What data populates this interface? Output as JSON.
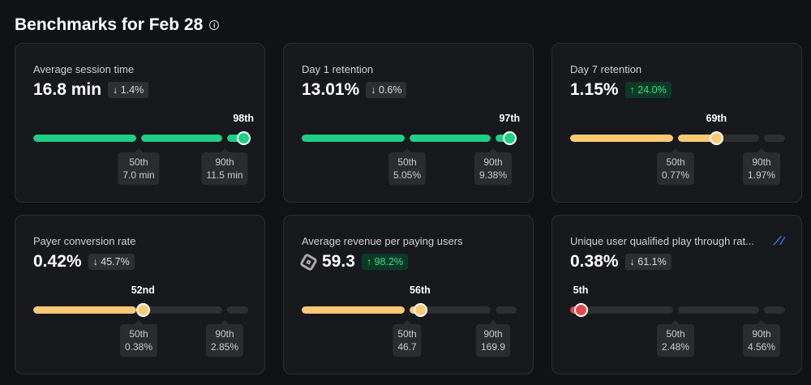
{
  "header": {
    "title": "Benchmarks for Feb 28",
    "info_icon": "info-icon"
  },
  "colors": {
    "good": "#1ecf85",
    "mid": "#fdc975",
    "bad": "#e5484d",
    "empty": "#2e2f33"
  },
  "cards": [
    {
      "title": "Average session time",
      "value": "16.8 min",
      "delta": "↓ 1.4%",
      "delta_dir": "down",
      "percentile": 98,
      "percentile_label": "98th",
      "status": "good",
      "p50": {
        "label": "50th",
        "value": "7.0 min"
      },
      "p90": {
        "label": "90th",
        "value": "11.5 min"
      }
    },
    {
      "title": "Day 1 retention",
      "value": "13.01%",
      "delta": "↓ 0.6%",
      "delta_dir": "down",
      "percentile": 97,
      "percentile_label": "97th",
      "status": "good",
      "p50": {
        "label": "50th",
        "value": "5.05%"
      },
      "p90": {
        "label": "90th",
        "value": "9.38%"
      }
    },
    {
      "title": "Day 7 retention",
      "value": "1.15%",
      "delta": "↑ 24.0%",
      "delta_dir": "up",
      "percentile": 69,
      "percentile_label": "69th",
      "status": "mid",
      "p50": {
        "label": "50th",
        "value": "0.77%"
      },
      "p90": {
        "label": "90th",
        "value": "1.97%"
      }
    },
    {
      "title": "Payer conversion rate",
      "value": "0.42%",
      "delta": "↓ 45.7%",
      "delta_dir": "down",
      "percentile": 52,
      "percentile_label": "52nd",
      "status": "mid",
      "p50": {
        "label": "50th",
        "value": "0.38%"
      },
      "p90": {
        "label": "90th",
        "value": "2.85%"
      }
    },
    {
      "title": "Average revenue per paying users",
      "value": "59.3",
      "value_icon": "robux-icon",
      "delta": "↑ 98.2%",
      "delta_dir": "up",
      "percentile": 56,
      "percentile_label": "56th",
      "status": "mid",
      "p50": {
        "label": "50th",
        "value": "46.7"
      },
      "p90": {
        "label": "90th",
        "value": "169.9"
      }
    },
    {
      "title": "Unique user qualified play through rat...",
      "title_icon": "trend-chart-icon",
      "value": "0.38%",
      "delta": "↓ 61.1%",
      "delta_dir": "down",
      "percentile": 5,
      "percentile_label": "5th",
      "status": "bad",
      "p50": {
        "label": "50th",
        "value": "2.48%"
      },
      "p90": {
        "label": "90th",
        "value": "4.56%"
      }
    }
  ]
}
